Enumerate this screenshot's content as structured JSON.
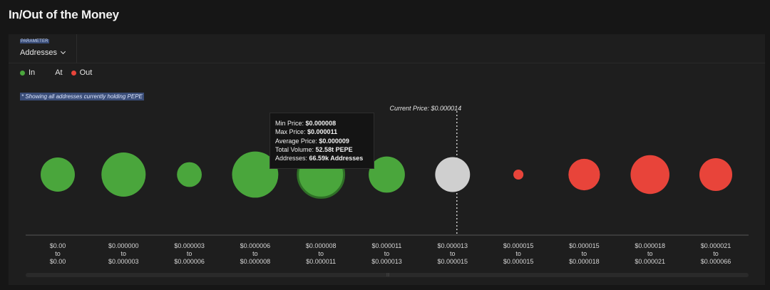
{
  "page": {
    "title": "In/Out of the Money"
  },
  "parameter": {
    "label": "PARAMETER",
    "value": "Addresses"
  },
  "legend": [
    {
      "label": "In",
      "color": "#4aa63c"
    },
    {
      "label": "At",
      "color": "#cfcfcf"
    },
    {
      "label": "Out",
      "color": "#e8443a"
    }
  ],
  "note": "* Showing all addresses currently holding PEPE",
  "current_price": {
    "label": "Current Price: $0.000014"
  },
  "tooltip": {
    "min_price_label": "Min Price:",
    "min_price_value": "$0.000008",
    "max_price_label": "Max Price:",
    "max_price_value": "$0.000011",
    "avg_price_label": "Average Price:",
    "avg_price_value": "$0.000009",
    "volume_label": "Total Volume:",
    "volume_value": "52.58t PEPE",
    "addresses_label": "Addresses:",
    "addresses_value": "66.59k Addresses"
  },
  "chart_data": {
    "type": "bubble",
    "x_labels": [
      {
        "from": "$0.00",
        "to_word": "to",
        "to": "$0.00"
      },
      {
        "from": "$0.000000",
        "to_word": "to",
        "to": "$0.000003"
      },
      {
        "from": "$0.000003",
        "to_word": "to",
        "to": "$0.000006"
      },
      {
        "from": "$0.000006",
        "to_word": "to",
        "to": "$0.000008"
      },
      {
        "from": "$0.000008",
        "to_word": "to",
        "to": "$0.000011"
      },
      {
        "from": "$0.000011",
        "to_word": "to",
        "to": "$0.000013"
      },
      {
        "from": "$0.000013",
        "to_word": "to",
        "to": "$0.000015"
      },
      {
        "from": "$0.000015",
        "to_word": "to",
        "to": "$0.000015"
      },
      {
        "from": "$0.000015",
        "to_word": "to",
        "to": "$0.000018"
      },
      {
        "from": "$0.000018",
        "to_word": "to",
        "to": "$0.000021"
      },
      {
        "from": "$0.000021",
        "to_word": "to",
        "to": "$0.000066"
      }
    ],
    "status": [
      "in",
      "in",
      "in",
      "in",
      "in",
      "in",
      "at",
      "out",
      "out",
      "out",
      "out"
    ],
    "relative_size": [
      0.51,
      0.66,
      0.37,
      0.69,
      0.69,
      0.54,
      0.52,
      0.15,
      0.47,
      0.58,
      0.49
    ],
    "highlighted_index": 4,
    "current_price_between_index": 6
  }
}
